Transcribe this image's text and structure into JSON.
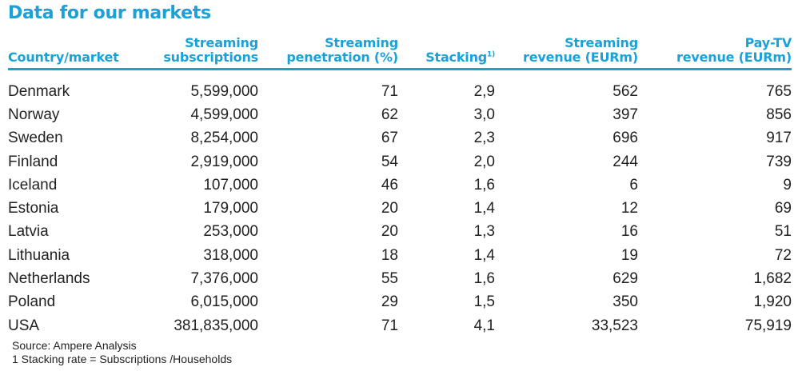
{
  "title": "Data for our markets",
  "colors": {
    "accent": "#1aa2d8",
    "text": "#222222"
  },
  "columns": [
    {
      "lines": [
        "Country/market"
      ]
    },
    {
      "lines": [
        "Streaming",
        "subscriptions"
      ]
    },
    {
      "lines": [
        "Streaming",
        "penetration (%)"
      ]
    },
    {
      "lines": [
        "Stacking"
      ],
      "sup": "1)"
    },
    {
      "lines": [
        "Streaming",
        "revenue (EURm)"
      ]
    },
    {
      "lines": [
        "Pay-TV",
        "revenue (EURm)"
      ]
    }
  ],
  "rows": [
    [
      "Denmark",
      "5,599,000",
      "71",
      "2,9",
      "562",
      "765"
    ],
    [
      "Norway",
      "4,599,000",
      "62",
      "3,0",
      "397",
      "856"
    ],
    [
      "Sweden",
      "8,254,000",
      "67",
      "2,3",
      "696",
      "917"
    ],
    [
      "Finland",
      "2,919,000",
      "54",
      "2,0",
      "244",
      "739"
    ],
    [
      "Iceland",
      "107,000",
      "46",
      "1,6",
      "6",
      "9"
    ],
    [
      "Estonia",
      "179,000",
      "20",
      "1,4",
      "12",
      "69"
    ],
    [
      "Latvia",
      "253,000",
      "20",
      "1,3",
      "16",
      "51"
    ],
    [
      "Lithuania",
      "318,000",
      "18",
      "1,4",
      "19",
      "72"
    ],
    [
      "Netherlands",
      "7,376,000",
      "55",
      "1,6",
      "629",
      "1,682"
    ],
    [
      "Poland",
      "6,015,000",
      "29",
      "1,5",
      "350",
      "1,920"
    ],
    [
      "USA",
      "381,835,000",
      "71",
      "4,1",
      "33,523",
      "75,919"
    ]
  ],
  "footnotes": {
    "source": "Source: Ampere Analysis",
    "stacking": "1 Stacking rate = Subscriptions /Households"
  }
}
